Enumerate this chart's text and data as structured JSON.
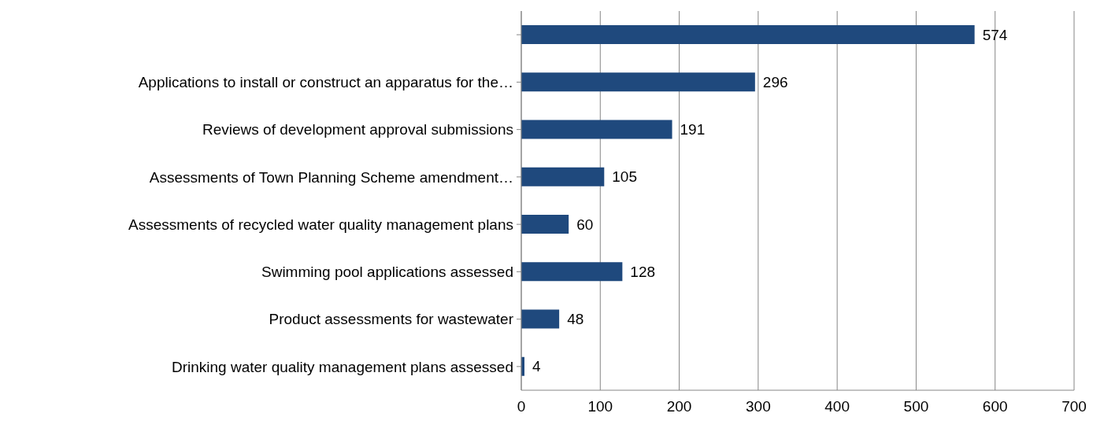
{
  "chart_data": {
    "type": "bar",
    "orientation": "horizontal",
    "categories": [
      null,
      "Applications to install or construct an apparatus for the…",
      "Reviews of development approval submissions",
      "Assessments of Town Planning Scheme amendment…",
      "Assessments of recycled water quality management plans",
      "Swimming pool applications assessed",
      "Product assessments for wastewater",
      "Drinking water quality management plans assessed"
    ],
    "values": [
      574,
      296,
      191,
      105,
      60,
      128,
      48,
      4
    ],
    "color": "#1f497d",
    "xlim": [
      0,
      700
    ],
    "xticks": [
      0,
      100,
      200,
      300,
      400,
      500,
      600,
      700
    ],
    "grid": "x",
    "data_labels": true
  }
}
